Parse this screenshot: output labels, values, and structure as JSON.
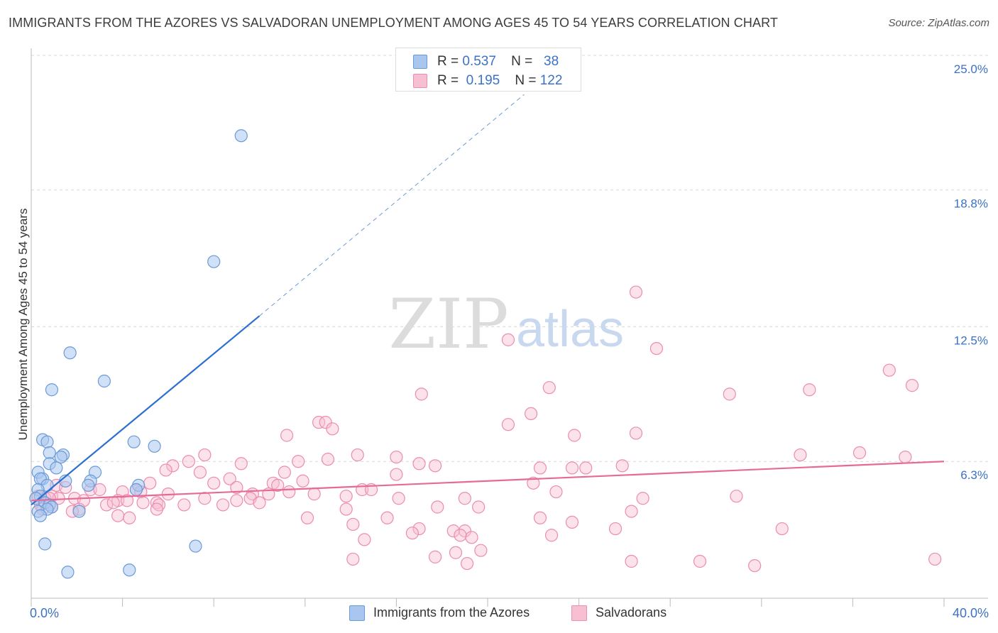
{
  "header": {
    "title": "IMMIGRANTS FROM THE AZORES VS SALVADORAN UNEMPLOYMENT AMONG AGES 45 TO 54 YEARS CORRELATION CHART",
    "source": "Source: ZipAtlas.com"
  },
  "watermark": {
    "zip": "ZIP",
    "atlas": "atlas"
  },
  "legend": {
    "rows": [
      {
        "r_label": "R =",
        "r_value": "0.537",
        "n_label": "N =",
        "n_value": "38",
        "color": "#a9c6ef"
      },
      {
        "r_label": "R =",
        "r_value": "0.195",
        "n_label": "N =",
        "n_value": "122",
        "color": "#f4aac4"
      }
    ]
  },
  "bottom_legend": {
    "azores": "Immigrants from the Azores",
    "salvadorans": "Salvadorans"
  },
  "colors": {
    "azores_fill": "#a9c6ef",
    "azores_stroke": "#6a9ad8",
    "azores_line": "#2b6fd0",
    "salv_fill": "#f7bfd2",
    "salv_stroke": "#ec8cae",
    "salv_line": "#e66a96",
    "tick_label": "#3b72c4"
  },
  "chart_data": {
    "type": "scatter",
    "title": "IMMIGRANTS FROM THE AZORES VS SALVADORAN UNEMPLOYMENT AMONG AGES 45 TO 54 YEARS CORRELATION CHART",
    "xlabel": "",
    "ylabel": "Unemployment Among Ages 45 to 54 years",
    "xlim": [
      0,
      40
    ],
    "ylim": [
      0,
      25
    ],
    "x_tick_labels": [
      "0.0%",
      "40.0%"
    ],
    "y_ticks": [
      6.3,
      12.5,
      18.8,
      25.0
    ],
    "y_tick_labels": [
      "6.3%",
      "12.5%",
      "18.8%",
      "25.0%"
    ],
    "grid": true,
    "series": [
      {
        "name": "Immigrants from the Azores",
        "R": 0.537,
        "N": 38,
        "trend": {
          "x": [
            0,
            10
          ],
          "y": [
            4.3,
            13.0
          ],
          "dashed_to": {
            "x": 21.6,
            "y": 23.2
          }
        },
        "points": [
          [
            9.2,
            21.3
          ],
          [
            8.0,
            15.5
          ],
          [
            1.7,
            11.3
          ],
          [
            3.2,
            10.0
          ],
          [
            0.9,
            9.6
          ],
          [
            0.5,
            7.3
          ],
          [
            0.7,
            7.2
          ],
          [
            4.5,
            7.2
          ],
          [
            5.4,
            7.0
          ],
          [
            0.8,
            6.7
          ],
          [
            1.4,
            6.6
          ],
          [
            1.3,
            6.5
          ],
          [
            0.8,
            6.2
          ],
          [
            1.1,
            6.0
          ],
          [
            0.3,
            5.8
          ],
          [
            2.8,
            5.8
          ],
          [
            0.5,
            5.5
          ],
          [
            0.4,
            5.5
          ],
          [
            1.5,
            5.4
          ],
          [
            0.7,
            5.2
          ],
          [
            2.6,
            5.4
          ],
          [
            2.5,
            5.2
          ],
          [
            0.3,
            5.0
          ],
          [
            4.7,
            5.2
          ],
          [
            4.6,
            5.0
          ],
          [
            0.4,
            4.7
          ],
          [
            0.2,
            4.6
          ],
          [
            0.6,
            4.4
          ],
          [
            0.8,
            4.3
          ],
          [
            0.9,
            4.2
          ],
          [
            0.7,
            4.1
          ],
          [
            0.3,
            4.0
          ],
          [
            2.1,
            4.0
          ],
          [
            0.4,
            3.8
          ],
          [
            0.6,
            2.5
          ],
          [
            7.2,
            2.4
          ],
          [
            1.6,
            1.2
          ],
          [
            4.3,
            1.3
          ]
        ]
      },
      {
        "name": "Salvadorans",
        "R": 0.195,
        "N": 122,
        "trend": {
          "x": [
            0,
            40
          ],
          "y": [
            4.5,
            6.3
          ]
        },
        "points": [
          [
            26.5,
            14.1
          ],
          [
            20.9,
            11.9
          ],
          [
            27.4,
            11.5
          ],
          [
            37.6,
            10.5
          ],
          [
            38.6,
            9.8
          ],
          [
            22.7,
            9.7
          ],
          [
            34.1,
            9.6
          ],
          [
            30.6,
            9.4
          ],
          [
            17.1,
            9.4
          ],
          [
            21.9,
            8.5
          ],
          [
            12.6,
            8.1
          ],
          [
            12.9,
            8.1
          ],
          [
            13.2,
            7.8
          ],
          [
            20.9,
            8.0
          ],
          [
            11.2,
            7.5
          ],
          [
            23.8,
            7.5
          ],
          [
            26.5,
            7.6
          ],
          [
            7.6,
            6.6
          ],
          [
            14.3,
            6.6
          ],
          [
            16.0,
            6.5
          ],
          [
            33.7,
            6.6
          ],
          [
            36.3,
            6.7
          ],
          [
            38.3,
            6.5
          ],
          [
            13.0,
            6.4
          ],
          [
            6.9,
            6.3
          ],
          [
            11.7,
            6.3
          ],
          [
            6.2,
            6.1
          ],
          [
            9.2,
            6.2
          ],
          [
            17.0,
            6.2
          ],
          [
            17.7,
            6.1
          ],
          [
            22.3,
            6.0
          ],
          [
            23.7,
            6.0
          ],
          [
            24.3,
            6.0
          ],
          [
            25.9,
            6.1
          ],
          [
            5.9,
            5.9
          ],
          [
            7.4,
            5.8
          ],
          [
            11.1,
            5.8
          ],
          [
            16.0,
            5.7
          ],
          [
            8.7,
            5.5
          ],
          [
            11.9,
            5.4
          ],
          [
            22.0,
            5.3
          ],
          [
            5.2,
            5.3
          ],
          [
            10.6,
            5.3
          ],
          [
            10.8,
            5.2
          ],
          [
            8.0,
            5.3
          ],
          [
            9.0,
            5.1
          ],
          [
            1.1,
            5.2
          ],
          [
            1.5,
            5.1
          ],
          [
            2.6,
            5.0
          ],
          [
            3.0,
            5.0
          ],
          [
            4.6,
            5.0
          ],
          [
            4.0,
            4.9
          ],
          [
            4.8,
            4.9
          ],
          [
            14.5,
            5.0
          ],
          [
            14.9,
            5.0
          ],
          [
            23.0,
            4.9
          ],
          [
            11.3,
            4.9
          ],
          [
            6.0,
            4.8
          ],
          [
            9.7,
            4.8
          ],
          [
            10.4,
            4.8
          ],
          [
            12.4,
            4.8
          ],
          [
            13.8,
            4.7
          ],
          [
            16.1,
            4.6
          ],
          [
            19.0,
            4.6
          ],
          [
            26.8,
            4.6
          ],
          [
            30.9,
            4.7
          ],
          [
            0.9,
            4.7
          ],
          [
            1.2,
            4.6
          ],
          [
            1.9,
            4.6
          ],
          [
            2.3,
            4.5
          ],
          [
            0.3,
            4.7
          ],
          [
            0.6,
            4.6
          ],
          [
            0.8,
            4.6
          ],
          [
            3.8,
            4.5
          ],
          [
            4.2,
            4.5
          ],
          [
            7.6,
            4.6
          ],
          [
            9.0,
            4.5
          ],
          [
            9.6,
            4.6
          ],
          [
            10.0,
            4.4
          ],
          [
            5.5,
            4.4
          ],
          [
            5.6,
            4.3
          ],
          [
            3.3,
            4.3
          ],
          [
            3.6,
            4.4
          ],
          [
            4.9,
            4.4
          ],
          [
            6.7,
            4.3
          ],
          [
            8.4,
            4.3
          ],
          [
            0.4,
            4.3
          ],
          [
            0.5,
            4.1
          ],
          [
            0.9,
            4.2
          ],
          [
            2.1,
            4.1
          ],
          [
            5.5,
            4.1
          ],
          [
            13.8,
            4.1
          ],
          [
            17.8,
            4.2
          ],
          [
            19.6,
            4.2
          ],
          [
            26.3,
            4.0
          ],
          [
            1.8,
            4.0
          ],
          [
            3.8,
            3.8
          ],
          [
            4.3,
            3.7
          ],
          [
            12.1,
            3.7
          ],
          [
            15.6,
            3.7
          ],
          [
            22.3,
            3.7
          ],
          [
            14.1,
            3.4
          ],
          [
            23.7,
            3.5
          ],
          [
            19.0,
            3.1
          ],
          [
            17.0,
            3.2
          ],
          [
            25.6,
            3.2
          ],
          [
            32.9,
            3.2
          ],
          [
            18.5,
            3.1
          ],
          [
            16.7,
            3.0
          ],
          [
            18.8,
            2.9
          ],
          [
            19.3,
            2.8
          ],
          [
            22.8,
            2.9
          ],
          [
            14.6,
            2.7
          ],
          [
            19.7,
            2.2
          ],
          [
            18.6,
            2.1
          ],
          [
            17.7,
            1.9
          ],
          [
            14.1,
            1.8
          ],
          [
            19.1,
            1.6
          ],
          [
            26.3,
            1.7
          ],
          [
            29.3,
            1.7
          ],
          [
            31.7,
            1.5
          ],
          [
            39.6,
            1.8
          ]
        ]
      }
    ]
  }
}
